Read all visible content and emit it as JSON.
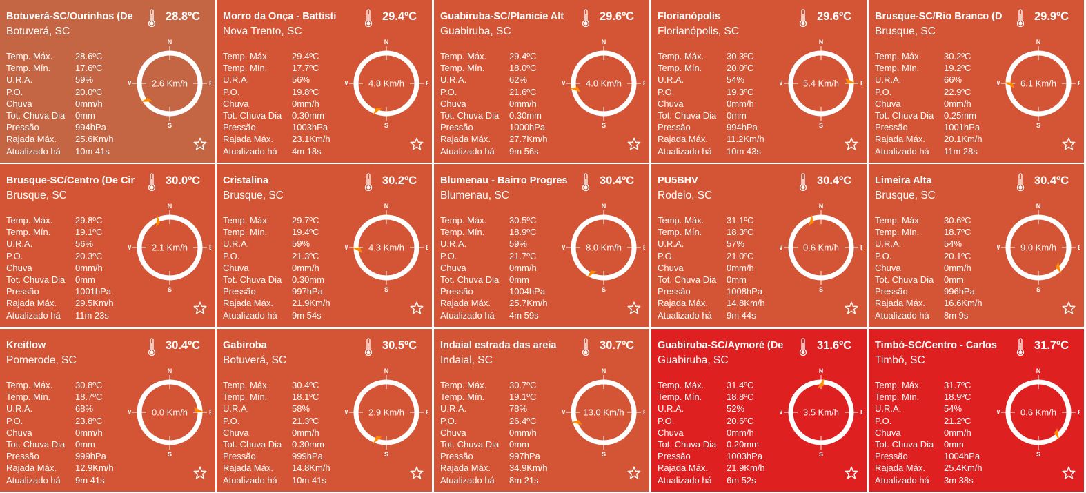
{
  "labels": {
    "tmax": "Temp. Máx.",
    "tmin": "Temp. Mín.",
    "ura": "U.R.A.",
    "po": "P.O.",
    "chuva": "Chuva",
    "tot": "Tot. Chuva Dia",
    "press": "Pressão",
    "raj": "Rajada Máx.",
    "atu": "Atualizado há",
    "n": "N",
    "e": "E",
    "s": "S",
    "w": "W"
  },
  "colors": {
    "amber": "#c46644",
    "orange": "#d35535",
    "red": "#df2020",
    "arrow": "#ff8c00"
  },
  "stations": [
    {
      "name": "Botuverá-SC/Ourinhos (De",
      "temp": "28.8ºC",
      "loc": "Botuverá, SC",
      "tmax": "28.6ºC",
      "tmin": "17.6ºC",
      "ura": "59%",
      "po": "20.0ºC",
      "chuva": "0mm/h",
      "tot": "0mm",
      "press": "994hPa",
      "raj": "25.6Km/h",
      "atu": "10m 41s",
      "wind": "2.6 Km/h",
      "dir": 237,
      "color": "amber"
    },
    {
      "name": "Morro da Onça - Battisti",
      "temp": "29.4ºC",
      "loc": "Nova Trento, SC",
      "tmax": "29.4ºC",
      "tmin": "17.7ºC",
      "ura": "56%",
      "po": "19.8ºC",
      "chuva": "0mm/h",
      "tot": "0.30mm",
      "press": "1003hPa",
      "raj": "23.1Km/h",
      "atu": "4m 18s",
      "wind": "4.8 Km/h",
      "dir": 203,
      "color": "orange"
    },
    {
      "name": "Guabiruba-SC/Planicie Alt",
      "temp": "29.6ºC",
      "loc": "Guabiruba, SC",
      "tmax": "29.4ºC",
      "tmin": "18.0ºC",
      "ura": "62%",
      "po": "21.6ºC",
      "chuva": "0mm/h",
      "tot": "0.30mm",
      "press": "1000hPa",
      "raj": "27.7Km/h",
      "atu": "9m 56s",
      "wind": "4.0 Km/h",
      "dir": 262,
      "color": "orange"
    },
    {
      "name": "Florianópolis",
      "temp": "29.6ºC",
      "loc": "Florianópolis, SC",
      "tmax": "30.3ºC",
      "tmin": "20.0ºC",
      "ura": "54%",
      "po": "19.3ºC",
      "chuva": "0mm/h",
      "tot": "0mm",
      "press": "994hPa",
      "raj": "11.2Km/h",
      "atu": "10m 43s",
      "wind": "5.4 Km/h",
      "dir": 90,
      "color": "orange"
    },
    {
      "name": "Brusque-SC/Rio Branco (D",
      "temp": "29.9ºC",
      "loc": "Brusque, SC",
      "tmax": "30.2ºC",
      "tmin": "19.2ºC",
      "ura": "66%",
      "po": "22.9ºC",
      "chuva": "0mm/h",
      "tot": "0.25mm",
      "press": "1001hPa",
      "raj": "20.1Km/h",
      "atu": "11m 28s",
      "wind": "6.1 Km/h",
      "dir": 272,
      "color": "orange"
    },
    {
      "name": "Brusque-SC/Centro (De Cir",
      "temp": "30.0ºC",
      "loc": "Brusque, SC",
      "tmax": "29.8ºC",
      "tmin": "19.1ºC",
      "ura": "56%",
      "po": "20.3ºC",
      "chuva": "0mm/h",
      "tot": "0mm",
      "press": "1001hPa",
      "raj": "29.5Km/h",
      "atu": "11m 23s",
      "wind": "2.1 Km/h",
      "dir": 339,
      "color": "orange"
    },
    {
      "name": "Cristalina",
      "temp": "30.2ºC",
      "loc": "Brusque, SC",
      "tmax": "29.7ºC",
      "tmin": "19.4ºC",
      "ura": "59%",
      "po": "21.3ºC",
      "chuva": "0mm/h",
      "tot": "0.30mm",
      "press": "997hPa",
      "raj": "21.9Km/h",
      "atu": "9m 54s",
      "wind": "4.3 Km/h",
      "dir": 270,
      "color": "orange"
    },
    {
      "name": "Blumenau - Bairro Progres",
      "temp": "30.4ºC",
      "loc": "Blumenau, SC",
      "tmax": "30.5ºC",
      "tmin": "18.9ºC",
      "ura": "59%",
      "po": "21.7ºC",
      "chuva": "0mm/h",
      "tot": "0mm",
      "press": "1004hPa",
      "raj": "25.7Km/h",
      "atu": "4m 59s",
      "wind": "8.0 Km/h",
      "dir": 209,
      "color": "orange"
    },
    {
      "name": "PU5BHV",
      "temp": "30.4ºC",
      "loc": "Rodeio, SC",
      "tmax": "31.1ºC",
      "tmin": "18.3ºC",
      "ura": "57%",
      "po": "21.0ºC",
      "chuva": "0mm/h",
      "tot": "0mm",
      "press": "1008hPa",
      "raj": "14.8Km/h",
      "atu": "9m 44s",
      "wind": "0.6 Km/h",
      "dir": 344,
      "color": "orange"
    },
    {
      "name": "Limeira Alta",
      "temp": "30.4ºC",
      "loc": "Brusque, SC",
      "tmax": "30.6ºC",
      "tmin": "18.7ºC",
      "ura": "54%",
      "po": "20.1ºC",
      "chuva": "0mm/h",
      "tot": "0mm",
      "press": "996hPa",
      "raj": "16.6Km/h",
      "atu": "8m 9s",
      "wind": "9.0 Km/h",
      "dir": 139,
      "color": "orange"
    },
    {
      "name": "Kreitlow",
      "temp": "30.4ºC",
      "loc": "Pomerode, SC",
      "tmax": "30.8ºC",
      "tmin": "18.7ºC",
      "ura": "68%",
      "po": "23.8ºC",
      "chuva": "0mm/h",
      "tot": "0mm",
      "press": "999hPa",
      "raj": "12.9Km/h",
      "atu": "9m 41s",
      "wind": "0.0 Km/h",
      "dir": 90,
      "color": "orange"
    },
    {
      "name": "Gabiroba",
      "temp": "30.5ºC",
      "loc": "Botuverá, SC",
      "tmax": "30.4ºC",
      "tmin": "18.1ºC",
      "ura": "58%",
      "po": "21.3ºC",
      "chuva": "0mm/h",
      "tot": "0.30mm",
      "press": "999hPa",
      "raj": "14.8Km/h",
      "atu": "10m 41s",
      "wind": "2.9 Km/h",
      "dir": 203,
      "color": "orange"
    },
    {
      "name": "Indaial estrada das areia",
      "temp": "30.7ºC",
      "loc": "Indaial, SC",
      "tmax": "30.7ºC",
      "tmin": "19.1ºC",
      "ura": "78%",
      "po": "26.4ºC",
      "chuva": "0mm/h",
      "tot": "0mm",
      "press": "997hPa",
      "raj": "34.9Km/h",
      "atu": "8m 21s",
      "wind": "13.0 Km/h",
      "dir": 253,
      "color": "orange"
    },
    {
      "name": "Guabiruba-SC/Aymoré (De",
      "temp": "31.6ºC",
      "loc": "Guabiruba, SC",
      "tmax": "31.4ºC",
      "tmin": "18.8ºC",
      "ura": "52%",
      "po": "20.6ºC",
      "chuva": "0mm/h",
      "tot": "0.20mm",
      "press": "1003hPa",
      "raj": "21.9Km/h",
      "atu": "6m 52s",
      "wind": "3.5 Km/h",
      "dir": 5,
      "color": "red"
    },
    {
      "name": "Timbó-SC/Centro - Carlos",
      "temp": "31.7ºC",
      "loc": "Timbó, SC",
      "tmax": "31.7ºC",
      "tmin": "18.9ºC",
      "ura": "54%",
      "po": "21.2ºC",
      "chuva": "0mm/h",
      "tot": "0mm",
      "press": "1004hPa",
      "raj": "25.4Km/h",
      "atu": "3m 38s",
      "wind": "0.6 Km/h",
      "dir": 143,
      "color": "red"
    }
  ]
}
